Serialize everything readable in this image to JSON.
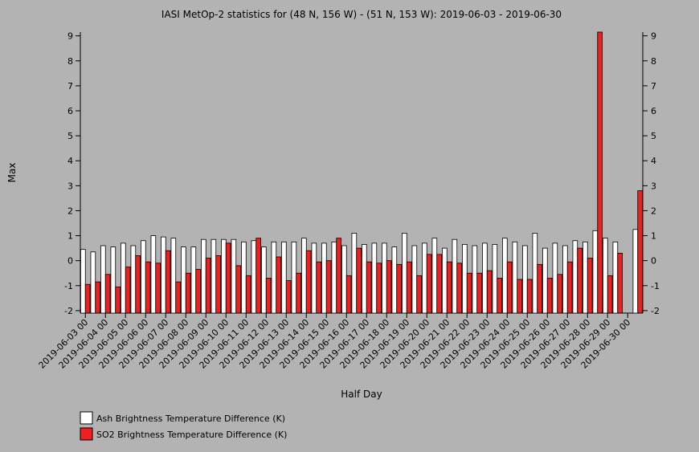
{
  "chart_data": {
    "type": "bar",
    "title": "IASI MetOp-2 statistics for (48 N, 156 W) - (51 N, 153 W): 2019-06-03 - 2019-06-30",
    "x_label": "Half Day",
    "y_label": "Max",
    "categories": [
      "2019-06-03 00",
      null,
      "2019-06-04 00",
      null,
      "2019-06-05 00",
      null,
      "2019-06-06 00",
      null,
      "2019-06-07 00",
      null,
      "2019-06-08 00",
      null,
      "2019-06-09 00",
      null,
      "2019-06-10 00",
      null,
      "2019-06-11 00",
      null,
      "2019-06-12 00",
      null,
      "2019-06-13 00",
      null,
      "2019-06-14 00",
      null,
      "2019-06-15 00",
      null,
      "2019-06-16 00",
      null,
      "2019-06-17 00",
      null,
      "2019-06-18 00",
      null,
      "2019-06-19 00",
      null,
      "2019-06-20 00",
      null,
      "2019-06-21 00",
      null,
      "2019-06-22 00",
      null,
      "2019-06-23 00",
      null,
      "2019-06-24 00",
      null,
      "2019-06-25 00",
      null,
      "2019-06-26 00",
      null,
      "2019-06-27 00",
      null,
      "2019-06-28 00",
      null,
      "2019-06-29 00",
      null,
      "2019-06-30 00",
      null
    ],
    "series": [
      {
        "name": "Ash Brightness Temperature Difference (K)",
        "color": "#ffffff",
        "values": [
          0.45,
          0.35,
          0.6,
          0.55,
          0.7,
          0.6,
          0.8,
          1.0,
          0.95,
          0.9,
          0.55,
          0.55,
          0.85,
          0.85,
          0.85,
          0.85,
          0.75,
          0.8,
          0.55,
          0.75,
          0.75,
          0.75,
          0.9,
          0.7,
          0.7,
          0.75,
          0.6,
          1.1,
          0.65,
          0.7,
          0.7,
          0.55,
          1.1,
          0.6,
          0.7,
          0.9,
          0.5,
          0.85,
          0.65,
          0.6,
          0.7,
          0.65,
          0.9,
          0.75,
          0.6,
          1.1,
          0.5,
          0.7,
          0.6,
          0.8,
          0.75,
          1.2,
          0.9,
          0.75,
          null,
          1.25
        ]
      },
      {
        "name": "SO2 Brightness Temperature Difference (K)",
        "color": "#ee2020",
        "values": [
          -0.95,
          -0.85,
          -0.55,
          -1.05,
          -0.25,
          0.2,
          -0.05,
          -0.1,
          0.4,
          -0.85,
          -0.5,
          -0.35,
          0.1,
          0.2,
          0.7,
          -0.2,
          -0.6,
          0.9,
          -0.7,
          0.15,
          -0.8,
          -0.5,
          0.4,
          -0.05,
          0.0,
          0.9,
          -0.6,
          0.5,
          -0.05,
          -0.1,
          0.0,
          -0.15,
          -0.05,
          -0.6,
          0.25,
          0.25,
          -0.05,
          -0.1,
          -0.5,
          -0.5,
          -0.4,
          -0.7,
          -0.05,
          -0.75,
          -0.75,
          -0.15,
          -0.7,
          -0.55,
          -0.05,
          0.5,
          0.1,
          9.15,
          -0.6,
          0.3,
          null,
          2.8
        ]
      }
    ],
    "ylim": [
      -2.1,
      9.15
    ],
    "yticks": [
      -2,
      -1,
      0,
      1,
      2,
      3,
      4,
      5,
      6,
      7,
      8,
      9
    ]
  }
}
